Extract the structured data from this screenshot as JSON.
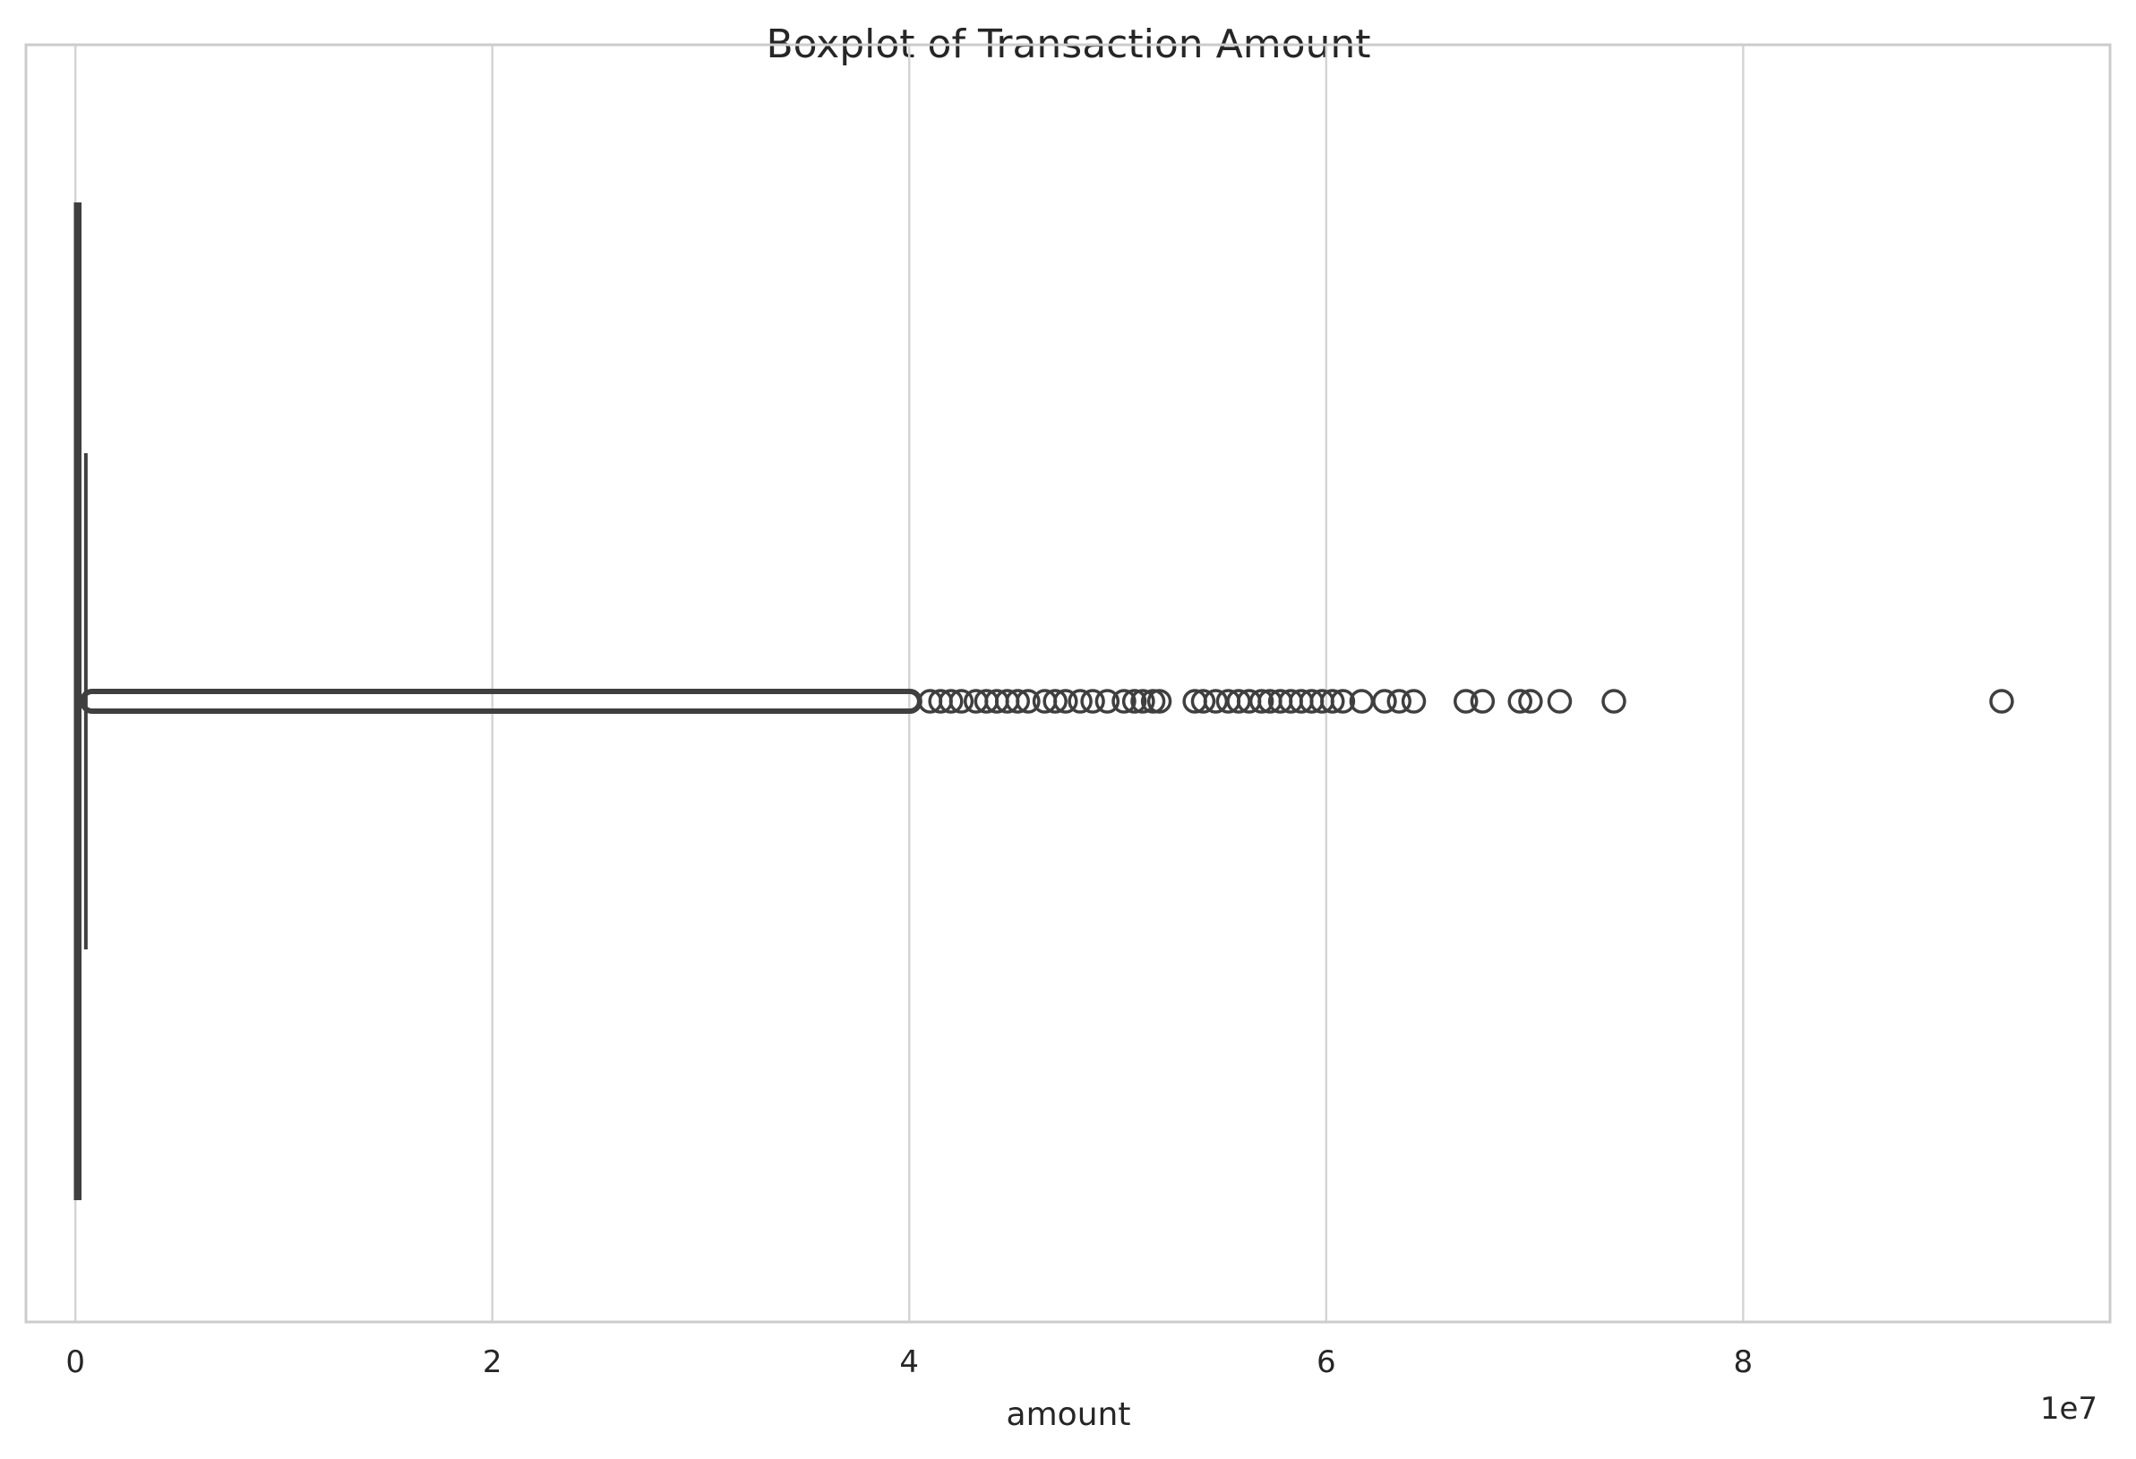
{
  "chart_data": {
    "type": "boxplot",
    "title": "Boxplot of Transaction Amount",
    "xlabel": "amount",
    "ylabel": "",
    "x_offset_label": "1e7",
    "xlim": [
      -0.237,
      9.76
    ],
    "x_ticks": [
      0,
      2,
      4,
      6,
      8
    ],
    "x_tick_labels": [
      "0",
      "2",
      "4",
      "6",
      "8"
    ],
    "grid": true,
    "orientation": "horizontal",
    "box": {
      "whisker_low": 0.0,
      "q1": 0.0013,
      "median": 0.0075,
      "q3": 0.0208,
      "whisker_high": 0.0502
    },
    "outliers": [
      4.1,
      4.15,
      4.2,
      4.25,
      4.32,
      4.37,
      4.42,
      4.47,
      4.52,
      4.57,
      4.65,
      4.7,
      4.75,
      4.82,
      4.88,
      4.95,
      5.03,
      5.08,
      5.12,
      5.17,
      5.2,
      5.37,
      5.41,
      5.47,
      5.53,
      5.58,
      5.63,
      5.69,
      5.73,
      5.78,
      5.83,
      5.88,
      5.93,
      5.98,
      6.03,
      6.08,
      6.17,
      6.28,
      6.35,
      6.42,
      6.67,
      6.75,
      6.93,
      6.98,
      7.12,
      7.38,
      9.24
    ],
    "colors": {
      "box_line": "#3f3f3f",
      "grid": "#d4d4d4",
      "frame": "#cccccc",
      "text": "#262626"
    }
  }
}
